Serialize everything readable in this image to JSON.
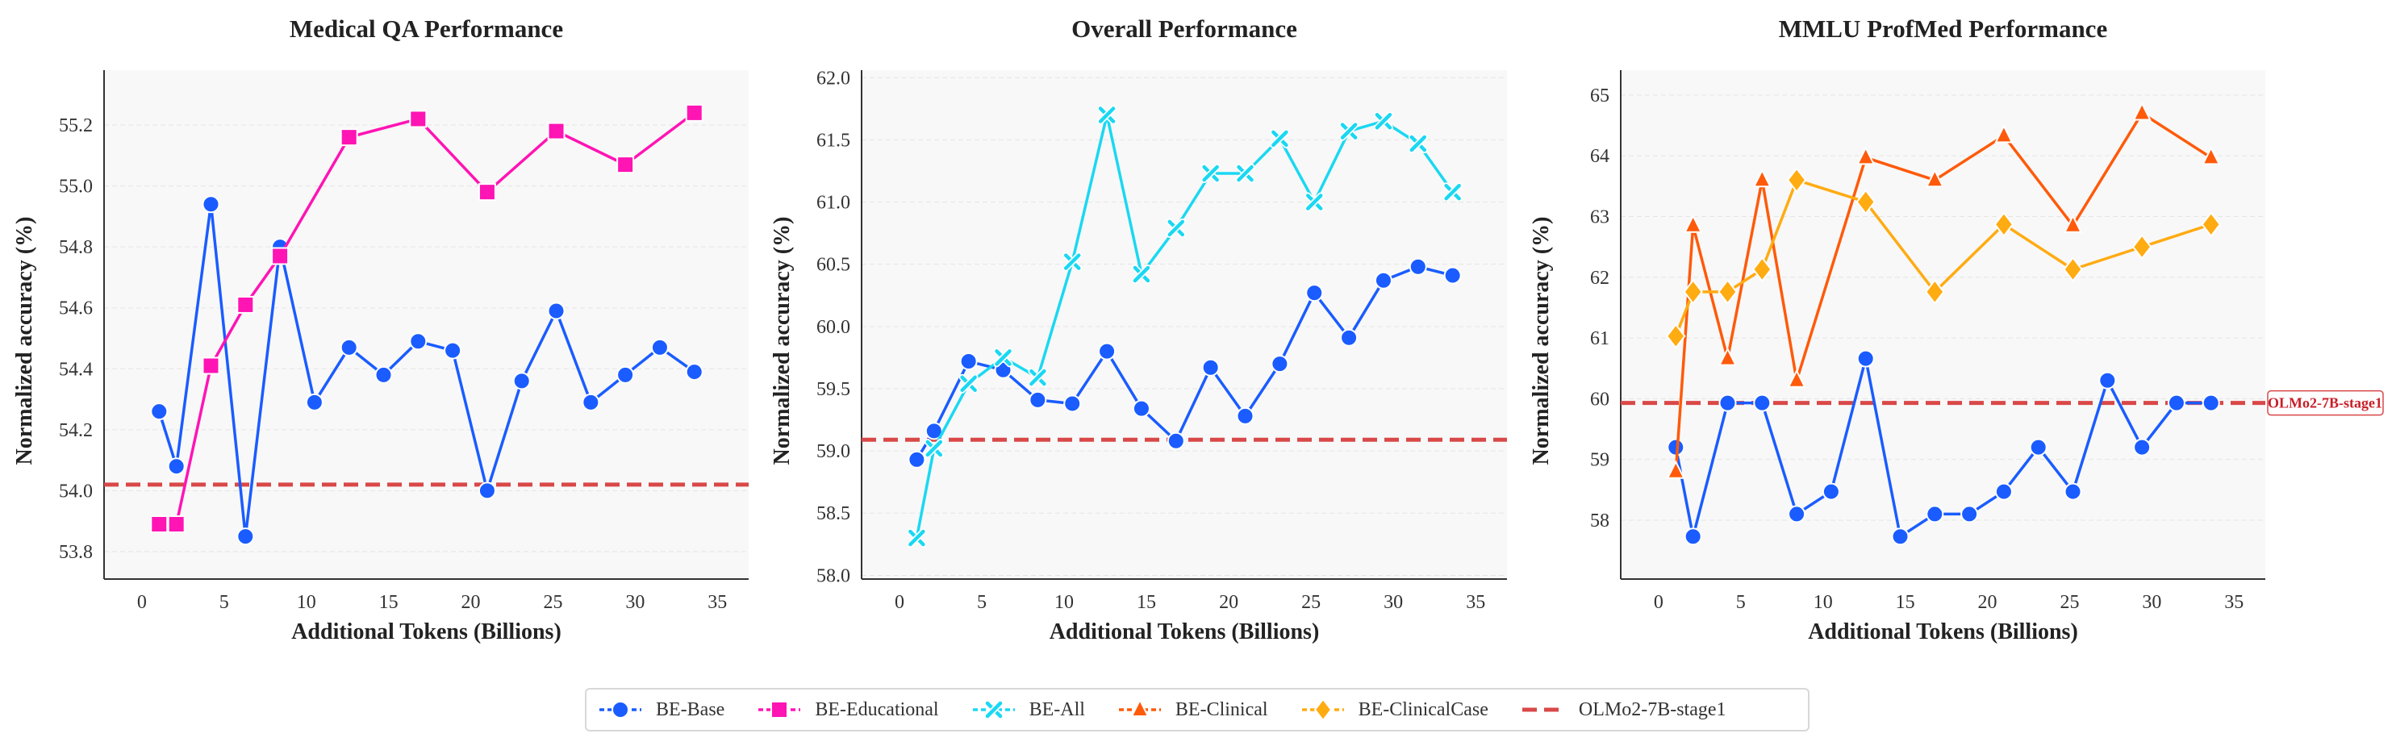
{
  "colors": {
    "BE-Base": "#1a5cff",
    "BE-Educational": "#ff14b4",
    "BE-All": "#1ad8f2",
    "BE-Clinical": "#ff5a0a",
    "BE-ClinicalCase": "#ffab12",
    "OLMo2-7B-stage1": "#d94848"
  },
  "legend": {
    "placement": "bottom-center",
    "items": [
      {
        "label": "BE-Base",
        "marker": "circle"
      },
      {
        "label": "BE-Educational",
        "marker": "square"
      },
      {
        "label": "BE-All",
        "marker": "x"
      },
      {
        "label": "BE-Clinical",
        "marker": "triangle"
      },
      {
        "label": "BE-ClinicalCase",
        "marker": "diamond"
      },
      {
        "label": "OLMo2-7B-stage1",
        "marker": "dashed-line"
      }
    ]
  },
  "chart_data": [
    {
      "type": "line",
      "title": "Medical QA Performance",
      "xlabel": "Additional Tokens (Billions)",
      "ylabel": "Normalized accuracy (%)",
      "xlim": [
        -2.3,
        36.9
      ],
      "ylim": [
        53.71,
        55.38
      ],
      "xticks": [
        "0",
        "5",
        "10",
        "15",
        "20",
        "25",
        "30",
        "35"
      ],
      "yticks": [
        "53.8",
        "54.0",
        "54.2",
        "54.4",
        "54.6",
        "54.8",
        "55.0",
        "55.2"
      ],
      "grid": true,
      "series": [
        {
          "name": "BE-Base",
          "marker": "circle",
          "x": [
            1.05,
            2.1,
            4.2,
            6.3,
            8.4,
            10.5,
            12.6,
            14.7,
            16.8,
            18.9,
            21,
            23.1,
            25.2,
            27.3,
            29.4,
            31.5,
            33.6
          ],
          "y": [
            54.26,
            54.08,
            54.94,
            53.85,
            54.8,
            54.29,
            54.47,
            54.38,
            54.49,
            54.46,
            54.0,
            54.36,
            54.59,
            54.29,
            54.38,
            54.47,
            54.39
          ]
        },
        {
          "name": "BE-Educational",
          "marker": "square",
          "x": [
            1.05,
            2.1,
            4.2,
            6.3,
            8.4,
            12.6,
            16.8,
            21,
            25.2,
            29.4,
            33.6
          ],
          "y": [
            53.89,
            53.89,
            54.41,
            54.61,
            54.77,
            55.16,
            55.22,
            54.98,
            55.18,
            55.07,
            55.24
          ]
        }
      ],
      "baseline": {
        "name": "OLMo2-7B-stage1",
        "y": 54.02,
        "annotated": false
      }
    },
    {
      "type": "line",
      "title": "Overall Performance",
      "xlabel": "Additional Tokens (Billions)",
      "ylabel": "Normalized accuracy (%)",
      "xlim": [
        -2.3,
        36.9
      ],
      "ylim": [
        57.97,
        62.06
      ],
      "xticks": [
        "0",
        "5",
        "10",
        "15",
        "20",
        "25",
        "30",
        "35"
      ],
      "yticks": [
        "58.0",
        "58.5",
        "59.0",
        "59.5",
        "60.0",
        "60.5",
        "61.0",
        "61.5",
        "62.0"
      ],
      "grid": true,
      "series": [
        {
          "name": "BE-Base",
          "marker": "circle",
          "x": [
            1.05,
            2.1,
            4.2,
            6.3,
            8.4,
            10.5,
            12.6,
            14.7,
            16.8,
            18.9,
            21,
            23.1,
            25.2,
            27.3,
            29.4,
            31.5,
            33.6
          ],
          "y": [
            58.93,
            59.16,
            59.72,
            59.65,
            59.41,
            59.38,
            59.8,
            59.34,
            59.08,
            59.67,
            59.28,
            59.7,
            60.27,
            59.91,
            60.37,
            60.48,
            60.41
          ]
        },
        {
          "name": "BE-All",
          "marker": "x",
          "x": [
            1.05,
            2.1,
            4.2,
            6.3,
            8.4,
            10.5,
            12.6,
            14.7,
            16.8,
            18.9,
            21,
            23.1,
            25.2,
            27.3,
            29.4,
            31.5,
            33.6
          ],
          "y": [
            58.3,
            59.02,
            59.54,
            59.75,
            59.59,
            60.52,
            61.7,
            60.42,
            60.79,
            61.23,
            61.23,
            61.51,
            61.0,
            61.57,
            61.65,
            61.47,
            61.08
          ]
        }
      ],
      "baseline": {
        "name": "OLMo2-7B-stage1",
        "y": 59.09,
        "annotated": false
      }
    },
    {
      "type": "line",
      "title": "MMLU ProfMed Performance",
      "xlabel": "Additional Tokens (Billions)",
      "ylabel": "Normalized accuracy (%)",
      "xlim": [
        -2.3,
        36.9
      ],
      "ylim": [
        57.03,
        65.41
      ],
      "xticks": [
        "0",
        "5",
        "10",
        "15",
        "20",
        "25",
        "30",
        "35"
      ],
      "yticks": [
        "58",
        "59",
        "60",
        "61",
        "62",
        "63",
        "64",
        "65"
      ],
      "grid": true,
      "series": [
        {
          "name": "BE-Base",
          "marker": "circle",
          "x": [
            1.05,
            2.1,
            4.2,
            6.3,
            8.4,
            10.5,
            12.6,
            14.7,
            16.8,
            18.9,
            21,
            23.1,
            25.2,
            27.3,
            29.4,
            31.5,
            33.6
          ],
          "y": [
            59.2,
            57.73,
            59.93,
            59.93,
            58.1,
            58.47,
            60.66,
            57.73,
            58.1,
            58.1,
            58.47,
            59.2,
            58.47,
            60.3,
            59.2,
            59.93,
            59.93
          ]
        },
        {
          "name": "BE-Clinical",
          "marker": "triangle",
          "x": [
            1.05,
            2.1,
            4.2,
            6.3,
            8.4,
            12.6,
            16.8,
            21,
            25.2,
            29.4,
            33.6
          ],
          "y": [
            58.8,
            62.85,
            60.66,
            63.6,
            60.3,
            63.97,
            63.6,
            64.33,
            62.85,
            64.7,
            63.97
          ]
        },
        {
          "name": "BE-ClinicalCase",
          "marker": "diamond",
          "x": [
            1.05,
            2.1,
            4.2,
            6.3,
            8.4,
            12.6,
            16.8,
            21,
            25.2,
            29.4,
            33.6
          ],
          "y": [
            61.03,
            61.76,
            61.76,
            62.13,
            63.6,
            63.24,
            61.76,
            62.87,
            62.13,
            62.5,
            62.87
          ]
        }
      ],
      "baseline": {
        "name": "OLMo2-7B-stage1",
        "y": 59.93,
        "annotated": true,
        "label": "OLMo2-7B-stage1"
      }
    }
  ]
}
